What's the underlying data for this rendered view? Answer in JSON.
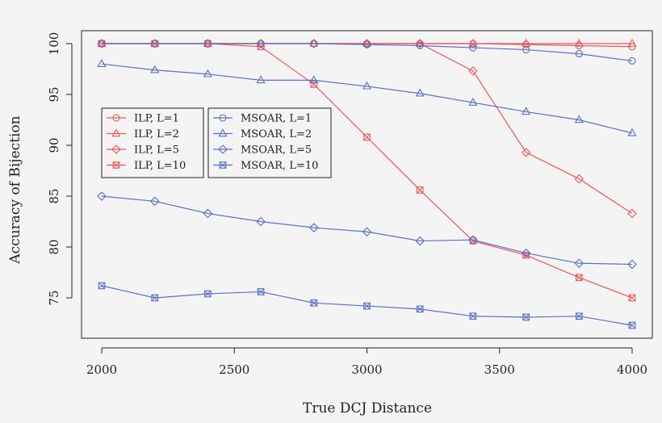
{
  "chart_data": {
    "type": "line",
    "xlabel": "True DCJ Distance",
    "ylabel": "Accuracy of Bijection",
    "xlim": [
      2000,
      4000
    ],
    "ylim": [
      72,
      100.5
    ],
    "xticks": [
      2000,
      2500,
      3000,
      3500,
      4000
    ],
    "yticks": [
      75,
      80,
      85,
      90,
      95,
      100
    ],
    "x": [
      2000,
      2200,
      2400,
      2600,
      2800,
      3000,
      3200,
      3400,
      3600,
      3800,
      4000
    ],
    "grid": false,
    "legend": [
      {
        "group": "ILP",
        "entries": [
          "ILP, L=1",
          "ILP, L=2",
          "ILP, L=5",
          "ILP, L=10"
        ]
      },
      {
        "group": "MSOAR",
        "entries": [
          "MSOAR, L=1",
          "MSOAR, L=2",
          "MSOAR, L=5",
          "MSOAR, L=10"
        ]
      }
    ],
    "series": [
      {
        "name": "ILP, L=1",
        "color": "#e8585b",
        "marker": "circle",
        "values": [
          100,
          100,
          100,
          100,
          100,
          100,
          100,
          100,
          99.9,
          99.8,
          99.7
        ]
      },
      {
        "name": "ILP, L=2",
        "color": "#e8585b",
        "marker": "triangle",
        "values": [
          100,
          100,
          100,
          100,
          100,
          100,
          100,
          100,
          100,
          100,
          100
        ]
      },
      {
        "name": "ILP, L=5",
        "color": "#e8585b",
        "marker": "diamond",
        "values": [
          100,
          100,
          100,
          100,
          100,
          100,
          100,
          97.3,
          89.3,
          86.7,
          83.3
        ]
      },
      {
        "name": "ILP, L=10",
        "color": "#e8585b",
        "marker": "boxx",
        "values": [
          100,
          100,
          100,
          99.7,
          96.0,
          90.8,
          85.6,
          80.6,
          79.2,
          77.0,
          75.0
        ]
      },
      {
        "name": "MSOAR, L=1",
        "color": "#5b6fc4",
        "marker": "circle",
        "values": [
          100,
          100,
          100,
          100,
          100,
          99.9,
          99.8,
          99.6,
          99.4,
          99.0,
          98.3
        ]
      },
      {
        "name": "MSOAR, L=2",
        "color": "#5b6fc4",
        "marker": "triangle",
        "values": [
          98.0,
          97.4,
          97.0,
          96.4,
          96.4,
          95.8,
          95.1,
          94.2,
          93.3,
          92.5,
          91.2
        ]
      },
      {
        "name": "MSOAR, L=5",
        "color": "#5b6fc4",
        "marker": "diamond",
        "values": [
          85.0,
          84.5,
          83.3,
          82.5,
          81.9,
          81.5,
          80.6,
          80.7,
          79.4,
          78.4,
          78.3
        ]
      },
      {
        "name": "MSOAR, L=10",
        "color": "#5b6fc4",
        "marker": "boxx",
        "values": [
          76.2,
          75.0,
          75.4,
          75.6,
          74.5,
          74.2,
          73.9,
          73.2,
          73.1,
          73.2,
          72.3
        ]
      }
    ]
  }
}
